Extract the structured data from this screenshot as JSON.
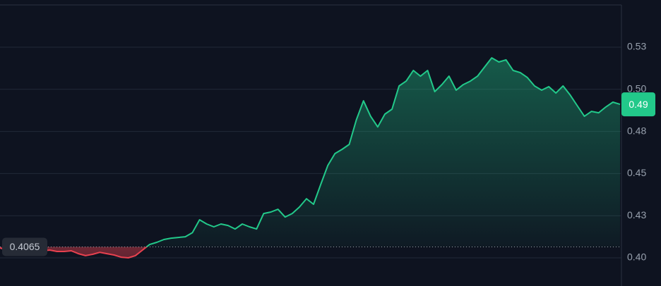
{
  "chart_data": {
    "type": "line",
    "values": [
      0.4059,
      0.4046,
      0.4042,
      0.4046,
      0.4042,
      0.405,
      0.4042,
      0.4046,
      0.4038,
      0.4038,
      0.4042,
      0.4025,
      0.4013,
      0.4021,
      0.4033,
      0.4025,
      0.4017,
      0.4004,
      0.4,
      0.4013,
      0.4046,
      0.4079,
      0.4092,
      0.4109,
      0.4117,
      0.4121,
      0.4125,
      0.415,
      0.4226,
      0.4201,
      0.4184,
      0.4201,
      0.4192,
      0.4171,
      0.4201,
      0.4184,
      0.4171,
      0.4263,
      0.4272,
      0.4288,
      0.4242,
      0.4263,
      0.4301,
      0.4351,
      0.4318,
      0.4435,
      0.4548,
      0.4619,
      0.4644,
      0.4673,
      0.4819,
      0.4932,
      0.484,
      0.4777,
      0.4853,
      0.4882,
      0.502,
      0.5049,
      0.5112,
      0.5078,
      0.5112,
      0.4986,
      0.5028,
      0.5078,
      0.4995,
      0.5028,
      0.5049,
      0.5078,
      0.5133,
      0.5187,
      0.5162,
      0.5175,
      0.5112,
      0.5099,
      0.507,
      0.502,
      0.4995,
      0.5016,
      0.4978,
      0.502,
      0.4966,
      0.4903,
      0.484,
      0.4869,
      0.4861,
      0.4895,
      0.4924,
      0.4911
    ],
    "ylim": [
      0.3833,
      0.553
    ],
    "yticks": [
      {
        "value": 0.525,
        "label": "0.53"
      },
      {
        "value": 0.5,
        "label": "0.50"
      },
      {
        "value": 0.475,
        "label": "0.48"
      },
      0.45,
      {
        "value": 0.425,
        "label": "0.43"
      },
      {
        "value": 0.4,
        "label": "0.40"
      }
    ],
    "grid": true,
    "baseline": 0.4065,
    "current_price_label": "0.49",
    "up_color": "#22c98a",
    "down_color": "#e8414f"
  }
}
